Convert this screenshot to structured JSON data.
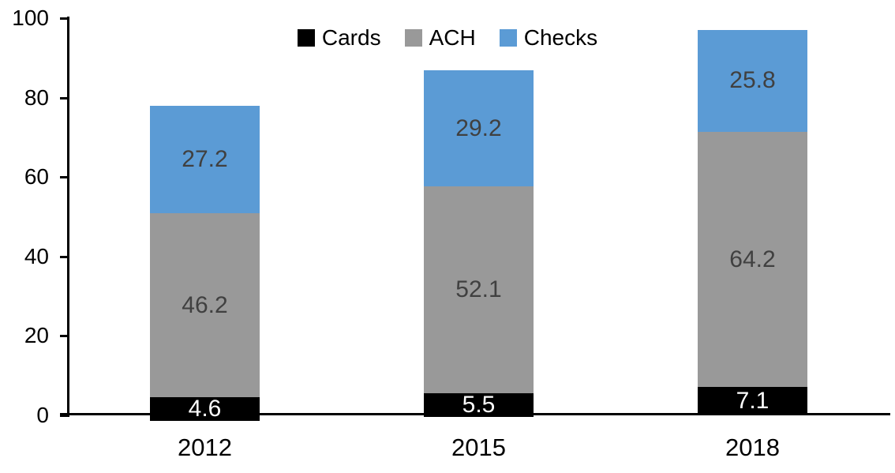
{
  "chart_data": {
    "type": "bar",
    "stacked": true,
    "title": "",
    "xlabel": "",
    "ylabel": "",
    "categories": [
      "2012",
      "2015",
      "2018"
    ],
    "series": [
      {
        "name": "Cards",
        "color": "#000000",
        "label_color": "#FFFFFF",
        "values": [
          4.6,
          5.5,
          7.1
        ]
      },
      {
        "name": "ACH",
        "color": "#999999",
        "label_color": "#404040",
        "values": [
          46.2,
          52.1,
          64.2
        ]
      },
      {
        "name": "Checks",
        "color": "#5B9BD5",
        "label_color": "#404040",
        "values": [
          27.2,
          29.2,
          25.8
        ]
      }
    ],
    "totals": [
      78.0,
      86.8,
      97.1
    ],
    "ylim": [
      0,
      100
    ],
    "yticks": [
      0,
      20,
      40,
      60,
      80,
      100
    ],
    "grid": false,
    "legend_position": "top-center",
    "data_labels": true,
    "axis_color": "#000000",
    "tick_label_color": "#000000"
  }
}
